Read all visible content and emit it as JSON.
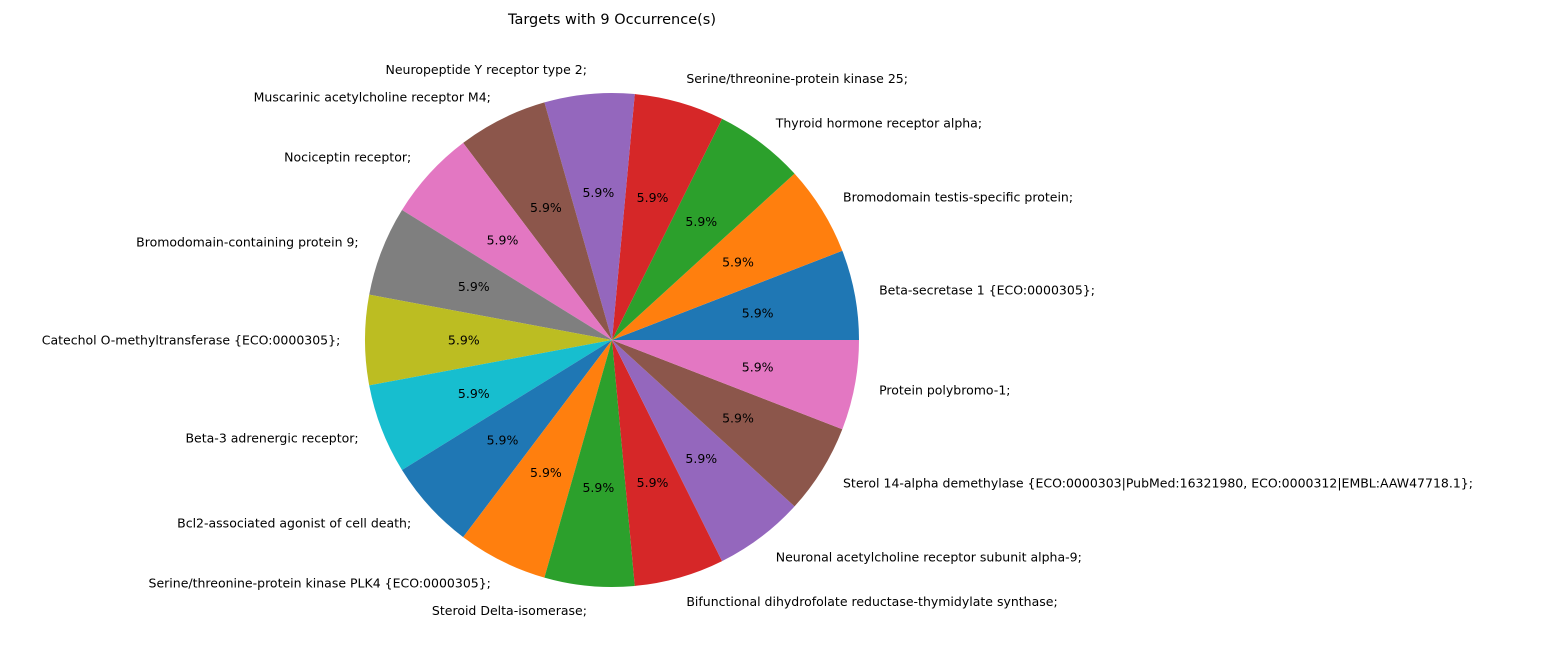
{
  "chart_data": {
    "type": "pie",
    "title": "Targets with 9 Occurrence(s)",
    "value_format": "percent_1dp",
    "start_angle_deg": 0,
    "direction": "counterclockwise",
    "slices": [
      {
        "label": "Beta-secretase 1 {ECO:0000305};",
        "value": 9,
        "percent_label": "5.9%",
        "color": "#1f77b4"
      },
      {
        "label": "Bromodomain testis-specific protein;",
        "value": 9,
        "percent_label": "5.9%",
        "color": "#ff7f0e"
      },
      {
        "label": "Thyroid hormone receptor alpha;",
        "value": 9,
        "percent_label": "5.9%",
        "color": "#2ca02c"
      },
      {
        "label": "Serine/threonine-protein kinase 25;",
        "value": 9,
        "percent_label": "5.9%",
        "color": "#d62728"
      },
      {
        "label": "Neuropeptide Y receptor type 2;",
        "value": 9,
        "percent_label": "5.9%",
        "color": "#9467bd"
      },
      {
        "label": "Muscarinic acetylcholine receptor M4;",
        "value": 9,
        "percent_label": "5.9%",
        "color": "#8c564b"
      },
      {
        "label": "Nociceptin receptor;",
        "value": 9,
        "percent_label": "5.9%",
        "color": "#e377c2"
      },
      {
        "label": "Bromodomain-containing protein 9;",
        "value": 9,
        "percent_label": "5.9%",
        "color": "#7f7f7f"
      },
      {
        "label": "Catechol O-methyltransferase {ECO:0000305};",
        "value": 9,
        "percent_label": "5.9%",
        "color": "#bcbd22"
      },
      {
        "label": "Beta-3 adrenergic receptor;",
        "value": 9,
        "percent_label": "5.9%",
        "color": "#17becf"
      },
      {
        "label": "Bcl2-associated agonist of cell death;",
        "value": 9,
        "percent_label": "5.9%",
        "color": "#1f77b4"
      },
      {
        "label": "Serine/threonine-protein kinase PLK4 {ECO:0000305};",
        "value": 9,
        "percent_label": "5.9%",
        "color": "#ff7f0e"
      },
      {
        "label": "Steroid Delta-isomerase;",
        "value": 9,
        "percent_label": "5.9%",
        "color": "#2ca02c"
      },
      {
        "label": "Bifunctional dihydrofolate reductase-thymidylate synthase;",
        "value": 9,
        "percent_label": "5.9%",
        "color": "#d62728"
      },
      {
        "label": "Neuronal acetylcholine receptor subunit alpha-9;",
        "value": 9,
        "percent_label": "5.9%",
        "color": "#9467bd"
      },
      {
        "label": "Sterol 14-alpha demethylase {ECO:0000303|PubMed:16321980, ECO:0000312|EMBL:AAW47718.1};",
        "value": 9,
        "percent_label": "5.9%",
        "color": "#8c564b"
      },
      {
        "label": "Protein polybromo-1;",
        "value": 9,
        "percent_label": "5.9%",
        "color": "#e377c2"
      }
    ]
  }
}
